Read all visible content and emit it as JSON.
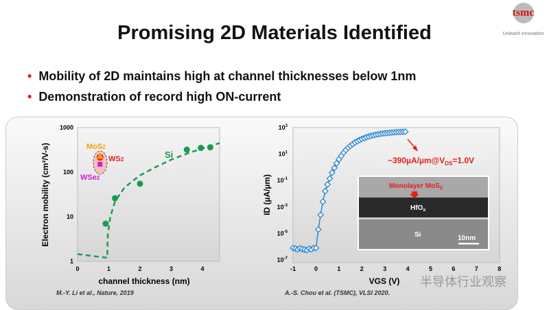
{
  "title": "Promising 2D Materials Identified",
  "bullets": [
    "Mobility of 2D maintains high at channel thicknesses below 1nm",
    "Demonstration of record high ON-current"
  ],
  "logo": {
    "name": "tsmc",
    "tagline": "Unleash Innovation"
  },
  "watermark": "半导体行业观察",
  "colors": {
    "accent": "#e02020",
    "si_green": "#1a9a50",
    "id_blue": "#2c86d0",
    "mos2": "#f5a000",
    "ws2": "#e02020",
    "wse2": "#d020c8"
  },
  "chart_data": [
    {
      "type": "scatter",
      "xlabel": "channel thickness (nm)",
      "ylabel": "Electron mobility (cm²/V-s)",
      "xlim": [
        0,
        4.55
      ],
      "ylim": [
        1,
        1000
      ],
      "yscale": "log",
      "xticks": [
        "0",
        "1",
        "2",
        "3",
        "4"
      ],
      "yticks": [
        "1",
        "10",
        "100",
        "1000"
      ],
      "series": [
        {
          "name": "Si",
          "points": [
            [
              0.9,
              7
            ],
            [
              1.2,
              26
            ],
            [
              2,
              55
            ],
            [
              3.5,
              320
            ],
            [
              3.95,
              350
            ],
            [
              4.25,
              360
            ]
          ],
          "fit": [
            [
              0,
              1.45
            ],
            [
              0.95,
              1.2
            ],
            [
              0.97,
              4
            ],
            [
              1.05,
              10
            ],
            [
              1.2,
              22
            ],
            [
              1.5,
              45
            ],
            [
              2,
              85
            ],
            [
              2.5,
              130
            ],
            [
              3,
              190
            ],
            [
              3.5,
              260
            ],
            [
              4,
              340
            ],
            [
              4.55,
              450
            ]
          ]
        },
        {
          "name": "MoS₂",
          "points": [
            [
              0.72,
              230
            ]
          ]
        },
        {
          "name": "WS₂",
          "points": [
            [
              0.72,
              215
            ]
          ]
        },
        {
          "name": "WSe₂",
          "points": [
            [
              0.72,
              150
            ]
          ]
        }
      ],
      "labels": {
        "si": "Si",
        "mos2": "MoS",
        "ws2": "WS",
        "wse2": "WSe",
        "sub": "2"
      },
      "citation": "M.-Y. Li et al., Nature, 2019"
    },
    {
      "type": "line",
      "xlabel": "VGS (V)",
      "ylabel": "ID (µA/µm)",
      "xlim": [
        -1,
        8
      ],
      "ylim_log10": [
        -7,
        3
      ],
      "yscale": "log",
      "xticks": [
        "-1",
        "0",
        "1",
        "2",
        "3",
        "4",
        "5",
        "6",
        "7",
        "8"
      ],
      "yticks_exp": [
        "3",
        "1",
        "-1",
        "-3",
        "-5",
        "-7"
      ],
      "vgs": [
        -1,
        -0.9,
        -0.8,
        -0.7,
        -0.6,
        -0.5,
        -0.4,
        -0.3,
        -0.2,
        -0.1,
        0,
        0.1,
        0.2,
        0.3,
        0.4,
        0.5,
        0.6,
        0.7,
        0.8,
        0.9,
        1.0,
        1.1,
        1.2,
        1.3,
        1.4,
        1.5,
        1.6,
        1.7,
        1.8,
        1.9,
        2.0,
        2.1,
        2.2,
        2.3,
        2.4,
        2.5,
        2.6,
        2.7,
        2.8,
        2.9,
        3.0,
        3.1,
        3.2,
        3.3,
        3.4,
        3.5,
        3.6,
        3.7,
        3.8,
        3.9
      ],
      "log10_id": [
        -6.1,
        -6.15,
        -6.2,
        -6.12,
        -6.18,
        -6.22,
        -6.25,
        -6.15,
        -6.2,
        -6.1,
        -6.1,
        -4.7,
        -3.6,
        -2.6,
        -1.8,
        -1.3,
        -0.85,
        -0.4,
        -0.05,
        0.3,
        0.6,
        0.85,
        1.1,
        1.3,
        1.47,
        1.62,
        1.75,
        1.87,
        1.97,
        2.06,
        2.14,
        2.21,
        2.27,
        2.33,
        2.38,
        2.42,
        2.46,
        2.49,
        2.52,
        2.55,
        2.57,
        2.59,
        2.61,
        2.62,
        2.64,
        2.65,
        2.66,
        2.67,
        2.68,
        2.69
      ],
      "annotation": {
        "pre": "~390µA/µm@V",
        "sub": "DS",
        "post": "=1.0V"
      },
      "inset": {
        "label": "Monolayer MoS",
        "label_sub": "2",
        "hfo": "HfO",
        "hfo_sub": "x",
        "si": "Si",
        "scale": "10nm"
      },
      "citation": "A.-S. Chou et al. (TSMC), VLSI 2020."
    }
  ]
}
